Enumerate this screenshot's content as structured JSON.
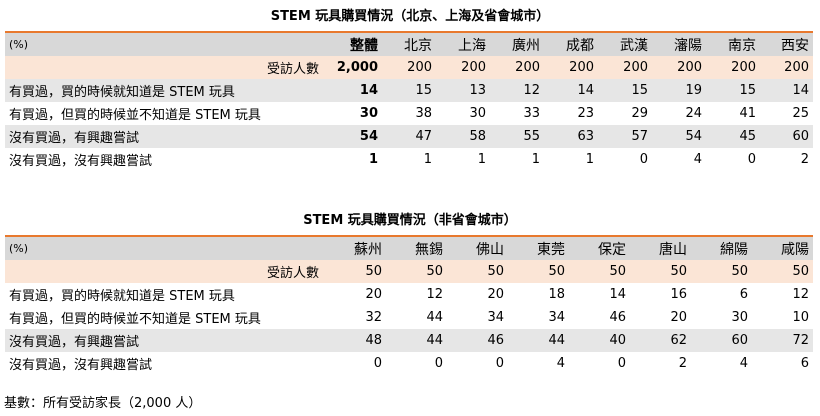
{
  "table1": {
    "title": "STEM 玩具購買情況（北京、上海及省會城市）",
    "unit": "(%)",
    "headers": [
      "整體",
      "北京",
      "上海",
      "廣州",
      "成都",
      "武漢",
      "瀋陽",
      "南京",
      "西安"
    ],
    "base_label": "受訪人數",
    "base_values": [
      "2,000",
      "200",
      "200",
      "200",
      "200",
      "200",
      "200",
      "200",
      "200"
    ],
    "rows": [
      {
        "label": "有買過，買的時候就知道是 STEM 玩具",
        "values": [
          "14",
          "15",
          "13",
          "12",
          "14",
          "15",
          "19",
          "15",
          "14"
        ]
      },
      {
        "label": "有買過，但買的時候並不知道是 STEM 玩具",
        "values": [
          "30",
          "38",
          "30",
          "33",
          "23",
          "29",
          "24",
          "41",
          "25"
        ]
      },
      {
        "label": "沒有買過，有興趣嘗試",
        "values": [
          "54",
          "47",
          "58",
          "55",
          "63",
          "57",
          "54",
          "45",
          "60"
        ]
      },
      {
        "label": "沒有買過，沒有興趣嘗試",
        "values": [
          "1",
          "1",
          "1",
          "1",
          "1",
          "0",
          "4",
          "0",
          "2"
        ]
      }
    ]
  },
  "table2": {
    "title": "STEM 玩具購買情況（非省會城市）",
    "unit": "(%)",
    "headers": [
      "蘇州",
      "無錫",
      "佛山",
      "東莞",
      "保定",
      "唐山",
      "綿陽",
      "咸陽"
    ],
    "base_label": "受訪人數",
    "base_values": [
      "50",
      "50",
      "50",
      "50",
      "50",
      "50",
      "50",
      "50"
    ],
    "rows": [
      {
        "label": "有買過，買的時候就知道是 STEM 玩具",
        "values": [
          "20",
          "12",
          "20",
          "18",
          "14",
          "16",
          "6",
          "12"
        ]
      },
      {
        "label": "有買過，但買的時候並不知道是 STEM 玩具",
        "values": [
          "32",
          "44",
          "34",
          "34",
          "46",
          "20",
          "30",
          "10"
        ]
      },
      {
        "label": "沒有買過，有興趣嘗試",
        "values": [
          "48",
          "44",
          "46",
          "44",
          "40",
          "62",
          "60",
          "72"
        ]
      },
      {
        "label": "沒有買過，沒有興趣嘗試",
        "values": [
          "0",
          "0",
          "0",
          "4",
          "0",
          "2",
          "4",
          "6"
        ]
      }
    ]
  },
  "footnote": "基數：所有受訪家長（2,000 人）",
  "colors": {
    "accent_bar": "#e8792e",
    "header_bg": "#d8d8d8",
    "base_row_bg": "#fbe5d6",
    "stripe_bg": "#e6e6e6"
  }
}
